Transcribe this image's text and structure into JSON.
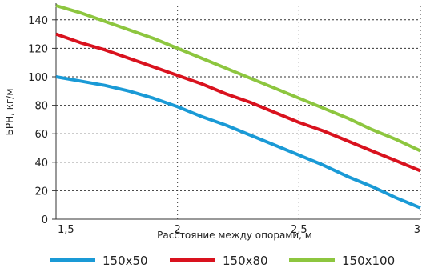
{
  "chart_data": {
    "type": "line",
    "xlabel": "Расстояние между опорами, м",
    "ylabel": "БРН, кг/м",
    "xlim": [
      1.5,
      3
    ],
    "ylim": [
      0,
      150
    ],
    "x_ticks": [
      1.5,
      2,
      2.5,
      3
    ],
    "x_tick_labels": [
      "1,5",
      "2",
      "2,5",
      "3"
    ],
    "y_ticks": [
      0,
      20,
      40,
      60,
      80,
      100,
      120,
      140
    ],
    "y_tick_labels": [
      "0",
      "20",
      "40",
      "60",
      "80",
      "100",
      "120",
      "140"
    ],
    "grid": true,
    "legend_position": "bottom",
    "series": [
      {
        "name": "150x50",
        "color": "#1a9ad6",
        "x": [
          1.5,
          1.6,
          1.7,
          1.8,
          1.9,
          2.0,
          2.1,
          2.2,
          2.3,
          2.4,
          2.5,
          2.6,
          2.7,
          2.8,
          2.9,
          3.0
        ],
        "y": [
          100,
          97,
          94,
          90,
          85,
          79,
          72,
          66,
          59,
          52,
          45,
          38,
          30,
          23,
          15,
          8
        ]
      },
      {
        "name": "150x80",
        "color": "#d9121e",
        "x": [
          1.5,
          1.6,
          1.7,
          1.8,
          1.9,
          2.0,
          2.1,
          2.2,
          2.3,
          2.4,
          2.5,
          2.6,
          2.7,
          2.8,
          2.9,
          3.0
        ],
        "y": [
          130,
          124,
          119,
          113,
          107,
          101,
          95,
          88,
          82,
          75,
          68,
          62,
          55,
          48,
          41,
          34
        ]
      },
      {
        "name": "150x100",
        "color": "#8dc63f",
        "x": [
          1.5,
          1.6,
          1.7,
          1.8,
          1.9,
          2.0,
          2.1,
          2.2,
          2.3,
          2.4,
          2.5,
          2.6,
          2.7,
          2.8,
          2.9,
          3.0
        ],
        "y": [
          150,
          145,
          139,
          133,
          127,
          120,
          113,
          106,
          99,
          92,
          85,
          78,
          71,
          63,
          56,
          48
        ]
      }
    ]
  }
}
